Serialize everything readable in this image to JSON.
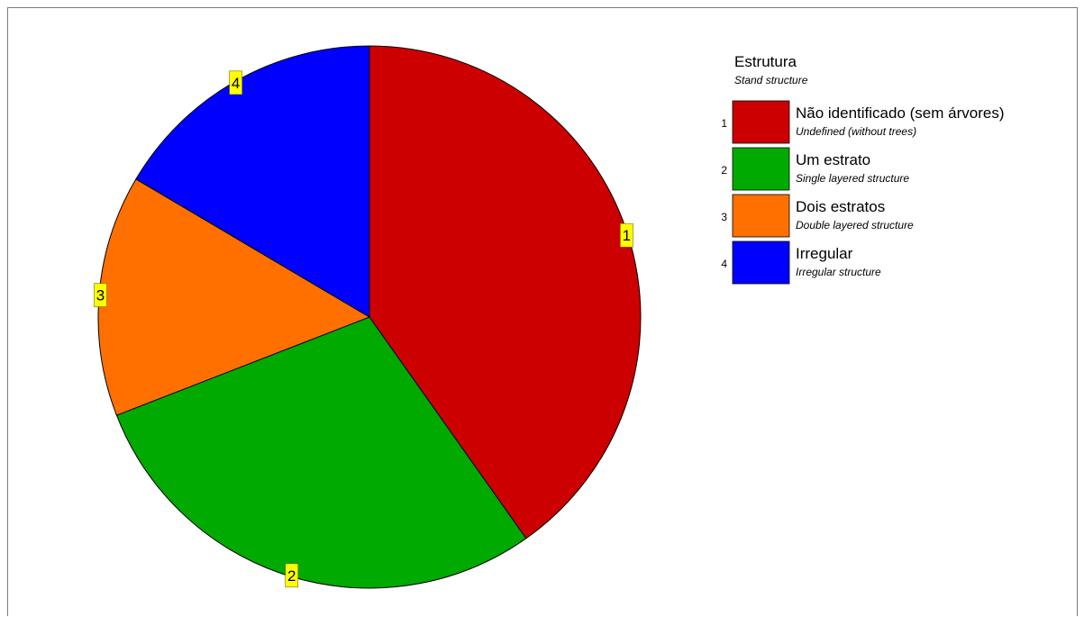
{
  "chart_data": {
    "type": "pie",
    "start_angle_deg": 0,
    "direction": "clockwise",
    "slices": [
      {
        "code": "1",
        "label": "Não identificado (sem árvores)",
        "sublabel": "Undefined (without trees)",
        "value": 40.2,
        "color": "#cc0000"
      },
      {
        "code": "2",
        "label": "Um estrato",
        "sublabel": "Single layered structure",
        "value": 28.9,
        "color": "#00aa00"
      },
      {
        "code": "3",
        "label": "Dois estratos",
        "sublabel": "Double layered structure",
        "value": 14.4,
        "color": "#ff7000"
      },
      {
        "code": "4",
        "label": "Irregular",
        "sublabel": "Irregular structure",
        "value": 16.5,
        "color": "#0000ff"
      }
    ],
    "legend": {
      "title": "Estrutura",
      "subtitle": "Stand structure",
      "placement": "top-right"
    },
    "label_background": "#ffff00"
  }
}
